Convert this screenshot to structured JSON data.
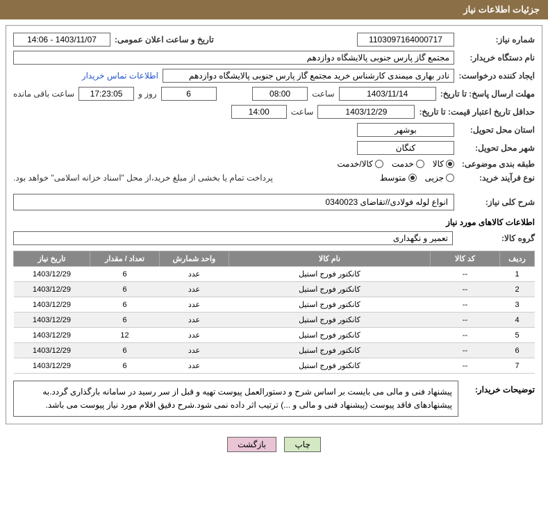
{
  "header": {
    "title": "جزئیات اطلاعات نیاز"
  },
  "fields": {
    "need_no_label": "شماره نیاز:",
    "need_no": "1103097164000717",
    "announce_label": "تاریخ و ساعت اعلان عمومی:",
    "announce": "1403/11/07 - 14:06",
    "buyer_label": "نام دستگاه خریدار:",
    "buyer": "مجتمع گاز پارس جنوبی پالایشگاه دوازدهم",
    "creator_label": "ایجاد کننده درخواست:",
    "creator": "نادر بهاری میمندی کارشناس خرید مجتمع گاز پارس جنوبی پالایشگاه دوازدهم",
    "contact_link": "اطلاعات تماس خریدار",
    "deadline_label": "مهلت ارسال پاسخ: تا تاریخ:",
    "deadline_date": "1403/11/14",
    "time_label": "ساعت",
    "deadline_time": "08:00",
    "days": "6",
    "days_label": "روز و",
    "remain_time": "17:23:05",
    "remain_label": "ساعت باقی مانده",
    "validity_label": "حداقل تاریخ اعتبار قیمت: تا تاریخ:",
    "validity_date": "1403/12/29",
    "validity_time": "14:00",
    "province_label": "استان محل تحویل:",
    "province": "بوشهر",
    "city_label": "شهر محل تحویل:",
    "city": "کنگان",
    "category_label": "طبقه بندی موضوعی:",
    "cat_goods": "کالا",
    "cat_service": "خدمت",
    "cat_both": "کالا/خدمت",
    "process_label": "نوع فرآیند خرید:",
    "proc_small": "جزیی",
    "proc_medium": "متوسط",
    "process_note": "پرداخت تمام یا بخشی از مبلغ خرید،از محل \"اسناد خزانه اسلامی\" خواهد بود.",
    "summary_label": "شرح کلی نیاز:",
    "summary": "انواع لوله فولادی//تقاضای 0340023",
    "goods_info_title": "اطلاعات کالاهای مورد نیاز",
    "group_label": "گروه کالا:",
    "group": "تعمیر و نگهداری",
    "notes_label": "توضیحات خریدار:",
    "notes": "پیشنهاد فنی و مالی می بایست بر اساس شرح و دستورالعمل پیوست تهیه و قبل از سر رسید در سامانه بارگذاری گردد.به پیشنهادهای فاقد پیوست (پیشنهاد فنی و مالی و ...) ترتیب اثر داده نمی شود.شرح دقیق اقلام مورد نیاز پیوست می باشد."
  },
  "table": {
    "headers": {
      "row": "ردیف",
      "code": "کد کالا",
      "name": "نام کالا",
      "unit": "واحد شمارش",
      "qty": "تعداد / مقدار",
      "date": "تاریخ نیاز"
    },
    "rows": [
      {
        "n": "1",
        "code": "--",
        "name": "کانکتور فورج استیل",
        "unit": "عدد",
        "qty": "6",
        "date": "1403/12/29"
      },
      {
        "n": "2",
        "code": "--",
        "name": "کانکتور فورج استیل",
        "unit": "عدد",
        "qty": "6",
        "date": "1403/12/29"
      },
      {
        "n": "3",
        "code": "--",
        "name": "کانکتور فورج استیل",
        "unit": "عدد",
        "qty": "6",
        "date": "1403/12/29"
      },
      {
        "n": "4",
        "code": "--",
        "name": "کانکتور فورج استیل",
        "unit": "عدد",
        "qty": "6",
        "date": "1403/12/29"
      },
      {
        "n": "5",
        "code": "--",
        "name": "کانکتور فورج استیل",
        "unit": "عدد",
        "qty": "12",
        "date": "1403/12/29"
      },
      {
        "n": "6",
        "code": "--",
        "name": "کانکتور فورج استیل",
        "unit": "عدد",
        "qty": "6",
        "date": "1403/12/29"
      },
      {
        "n": "7",
        "code": "--",
        "name": "کانکتور فورج استیل",
        "unit": "عدد",
        "qty": "6",
        "date": "1403/12/29"
      }
    ]
  },
  "buttons": {
    "print": "چاپ",
    "back": "بازگشت"
  },
  "style": {
    "header_bg": "#8b6f47",
    "th_bg": "#888888",
    "border": "#666666"
  }
}
